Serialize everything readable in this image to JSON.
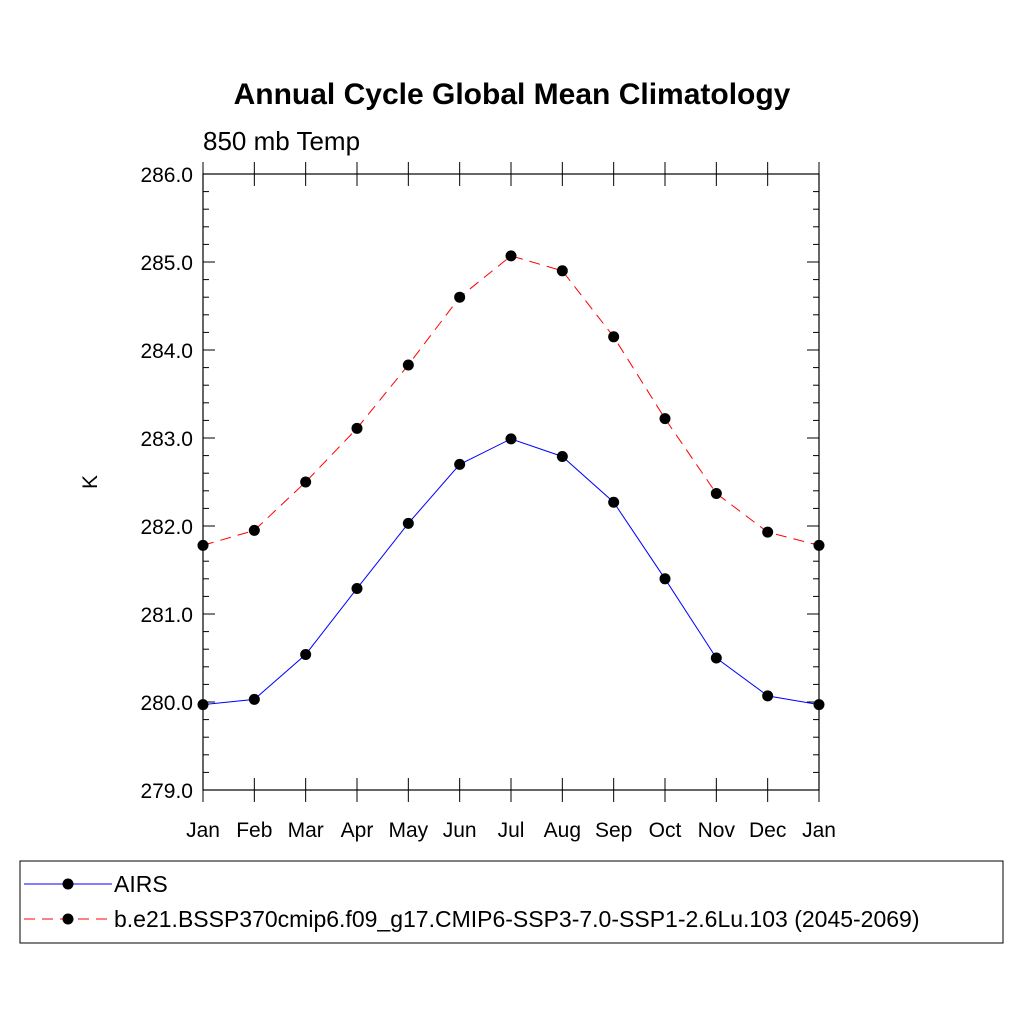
{
  "chart_data": {
    "type": "line",
    "title": "Annual Cycle Global Mean Climatology",
    "subtitle": "850 mb Temp",
    "xlabel": "",
    "ylabel": "K",
    "categories": [
      "Jan",
      "Feb",
      "Mar",
      "Apr",
      "May",
      "Jun",
      "Jul",
      "Aug",
      "Sep",
      "Oct",
      "Nov",
      "Dec",
      "Jan"
    ],
    "ylim": [
      279.0,
      286.0
    ],
    "yticks": [
      "279.0",
      "280.0",
      "281.0",
      "282.0",
      "283.0",
      "284.0",
      "285.0",
      "286.0"
    ],
    "grid": false,
    "legend_position": "bottom",
    "series": [
      {
        "name": "AIRS",
        "color": "#0000ff",
        "line_style": "solid",
        "marker": "filled-circle",
        "values": [
          279.97,
          280.03,
          280.54,
          281.29,
          282.03,
          282.7,
          282.99,
          282.79,
          282.27,
          281.4,
          280.5,
          280.07,
          279.97
        ]
      },
      {
        "name": "b.e21.BSSP370cmip6.f09_g17.CMIP6-SSP3-7.0-SSP1-2.6Lu.103 (2045-2069)",
        "color": "#ff0000",
        "line_style": "dashed",
        "marker": "filled-circle",
        "values": [
          281.78,
          281.95,
          282.5,
          283.11,
          283.83,
          284.6,
          285.07,
          284.9,
          284.15,
          283.22,
          282.37,
          281.93,
          281.78
        ]
      }
    ]
  }
}
